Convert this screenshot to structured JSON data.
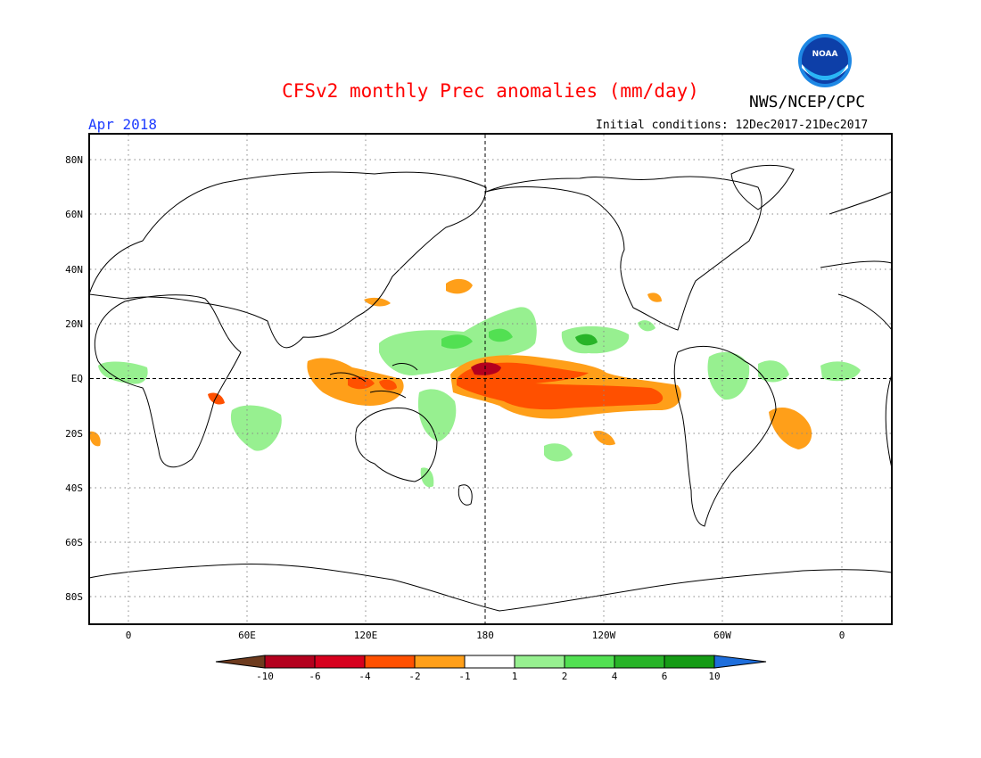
{
  "header": {
    "title": "CFSv2 monthly Prec anomalies (mm/day)",
    "org": "NWS/NCEP/CPC",
    "logo_text": "NOAA",
    "month": "Apr 2018",
    "init_conditions": "Initial conditions: 12Dec2017-21Dec2017"
  },
  "map": {
    "lat_labels": [
      "80N",
      "60N",
      "40N",
      "20N",
      "EQ",
      "20S",
      "40S",
      "60S",
      "80S"
    ],
    "lon_labels": [
      "0",
      "60E",
      "120E",
      "180",
      "120W",
      "60W",
      "0"
    ]
  },
  "colorbar": {
    "colors": [
      "#6e3b1e",
      "#b4001e",
      "#d7001e",
      "#ff5000",
      "#ff9f19",
      "#ffffff",
      "#97f090",
      "#52e052",
      "#28b428",
      "#159b15",
      "#1e6edc"
    ],
    "labels": [
      "-10",
      "-6",
      "-4",
      "-2",
      "-1",
      "1",
      "2",
      "4",
      "6",
      "10"
    ]
  }
}
